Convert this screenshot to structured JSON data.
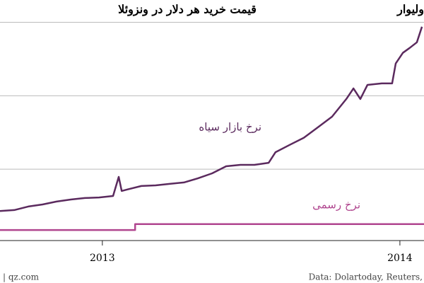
{
  "chart_data": {
    "type": "line",
    "title": "قیمت خرید هر دلار در ونزوئلا",
    "subtitle": "ولیوار",
    "source": "Data: Dolartoday, Reuters,",
    "credit": "| qz.com",
    "xlim": [
      2012.656,
      2014.081
    ],
    "xticks": [
      2013,
      2014
    ],
    "ylim": [
      0,
      82.6
    ],
    "yticks": [
      25,
      50,
      75
    ],
    "grid": true,
    "series": [
      {
        "name": "نرخ بازار سیاه",
        "color": "#5b2a5e",
        "x": [
          2012.656,
          2012.704,
          2012.751,
          2012.799,
          2012.846,
          2012.894,
          2012.941,
          2012.989,
          2013.036,
          2013.055,
          2013.065,
          2013.084,
          2013.131,
          2013.179,
          2013.226,
          2013.274,
          2013.321,
          2013.369,
          2013.416,
          2013.464,
          2013.511,
          2013.559,
          2013.582,
          2013.63,
          2013.677,
          2013.725,
          2013.772,
          2013.82,
          2013.844,
          2013.867,
          2013.891,
          2013.939,
          2013.974,
          2013.986,
          2014.01,
          2014.033,
          2014.057,
          2014.074
        ],
        "values": [
          10.8,
          11.1,
          12.3,
          13.0,
          14.0,
          14.7,
          15.2,
          15.4,
          15.9,
          22.4,
          17.6,
          18.1,
          19.3,
          19.5,
          20.0,
          20.5,
          21.9,
          23.6,
          26.0,
          26.5,
          26.5,
          27.2,
          30.8,
          33.3,
          35.7,
          39.3,
          42.9,
          48.9,
          52.5,
          48.9,
          53.7,
          54.2,
          54.2,
          61.0,
          64.6,
          66.3,
          68.2,
          73.5
        ]
      },
      {
        "name": "نرخ رسمی",
        "color": "#b0468f",
        "x": [
          2012.656,
          2013.11,
          2013.11,
          2014.081
        ],
        "values": [
          4.3,
          4.3,
          6.3,
          6.3
        ]
      }
    ]
  }
}
